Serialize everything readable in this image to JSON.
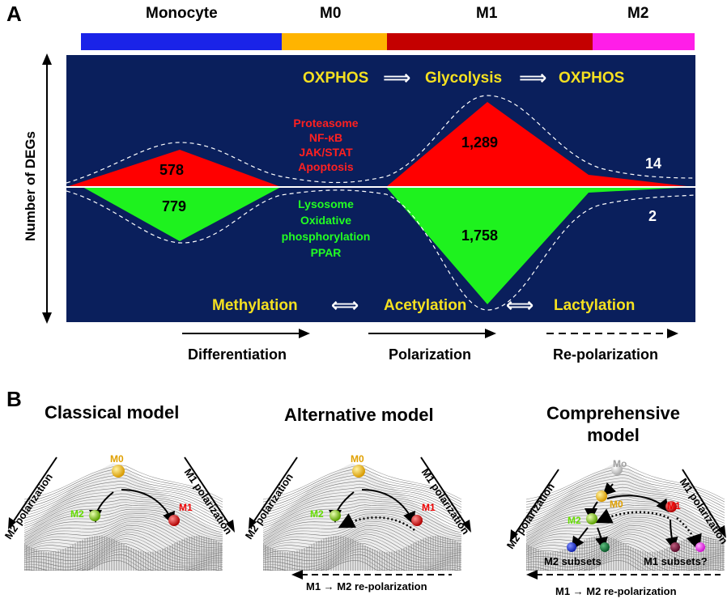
{
  "panel_a": {
    "letter": "A",
    "stages": [
      "Monocyte",
      "M0",
      "M1",
      "M2"
    ],
    "stage_colors": [
      "#1a23e8",
      "#ffb400",
      "#c40000",
      "#ff1ee8"
    ],
    "y_axis_label": "Number of DEGs",
    "metabolism": {
      "from": "OXPHOS",
      "mid": "Glycolysis",
      "to": "OXPHOS",
      "arrow": "⟹"
    },
    "up_pathways": [
      "Proteasome",
      "NF-κB",
      "JAK/STAT",
      "Apoptosis"
    ],
    "down_pathways": [
      "Lysosome",
      "Oxidative",
      "phosphorylation",
      "PPAR"
    ],
    "deg_up": [
      "578",
      "1,289",
      "14"
    ],
    "deg_down": [
      "779",
      "1,758",
      "2"
    ],
    "epigenetic": {
      "first": "Methylation",
      "mid": "Acetylation",
      "last": "Lactylation",
      "arrow": "⟺"
    },
    "processes": [
      "Differentiation",
      "Polarization",
      "Re-polarization"
    ],
    "colors": {
      "panel_bg": "#0a1f5c",
      "up": "#ff0000",
      "down": "#1ef21e",
      "text_yellow": "#f5e020",
      "pathway_red": "#ff2020",
      "pathway_green": "#22ff22"
    }
  },
  "panel_b": {
    "letter": "B",
    "models": [
      {
        "title_lines": [
          "Classical model"
        ],
        "left_axis": "M2 polarization",
        "right_axis": "M1 polarization",
        "balls": [
          "M0",
          "M2",
          "M1"
        ],
        "footer": ""
      },
      {
        "title_lines": [
          "Alternative model"
        ],
        "left_axis": "M2 polarization",
        "right_axis": "M1 polarization",
        "balls": [
          "M0",
          "M2",
          "M1"
        ],
        "footer": "M1 → M2 re-polarization"
      },
      {
        "title_lines": [
          "Comprehensive",
          "model"
        ],
        "left_axis": "M2 polarization",
        "right_axis": "M1 polarization",
        "balls": [
          "Mo",
          "M0",
          "M2",
          "M1"
        ],
        "subsets": [
          "M2 subsets",
          "M1 subsets?"
        ],
        "footer": "M1 → M2 re-polarization"
      }
    ]
  }
}
